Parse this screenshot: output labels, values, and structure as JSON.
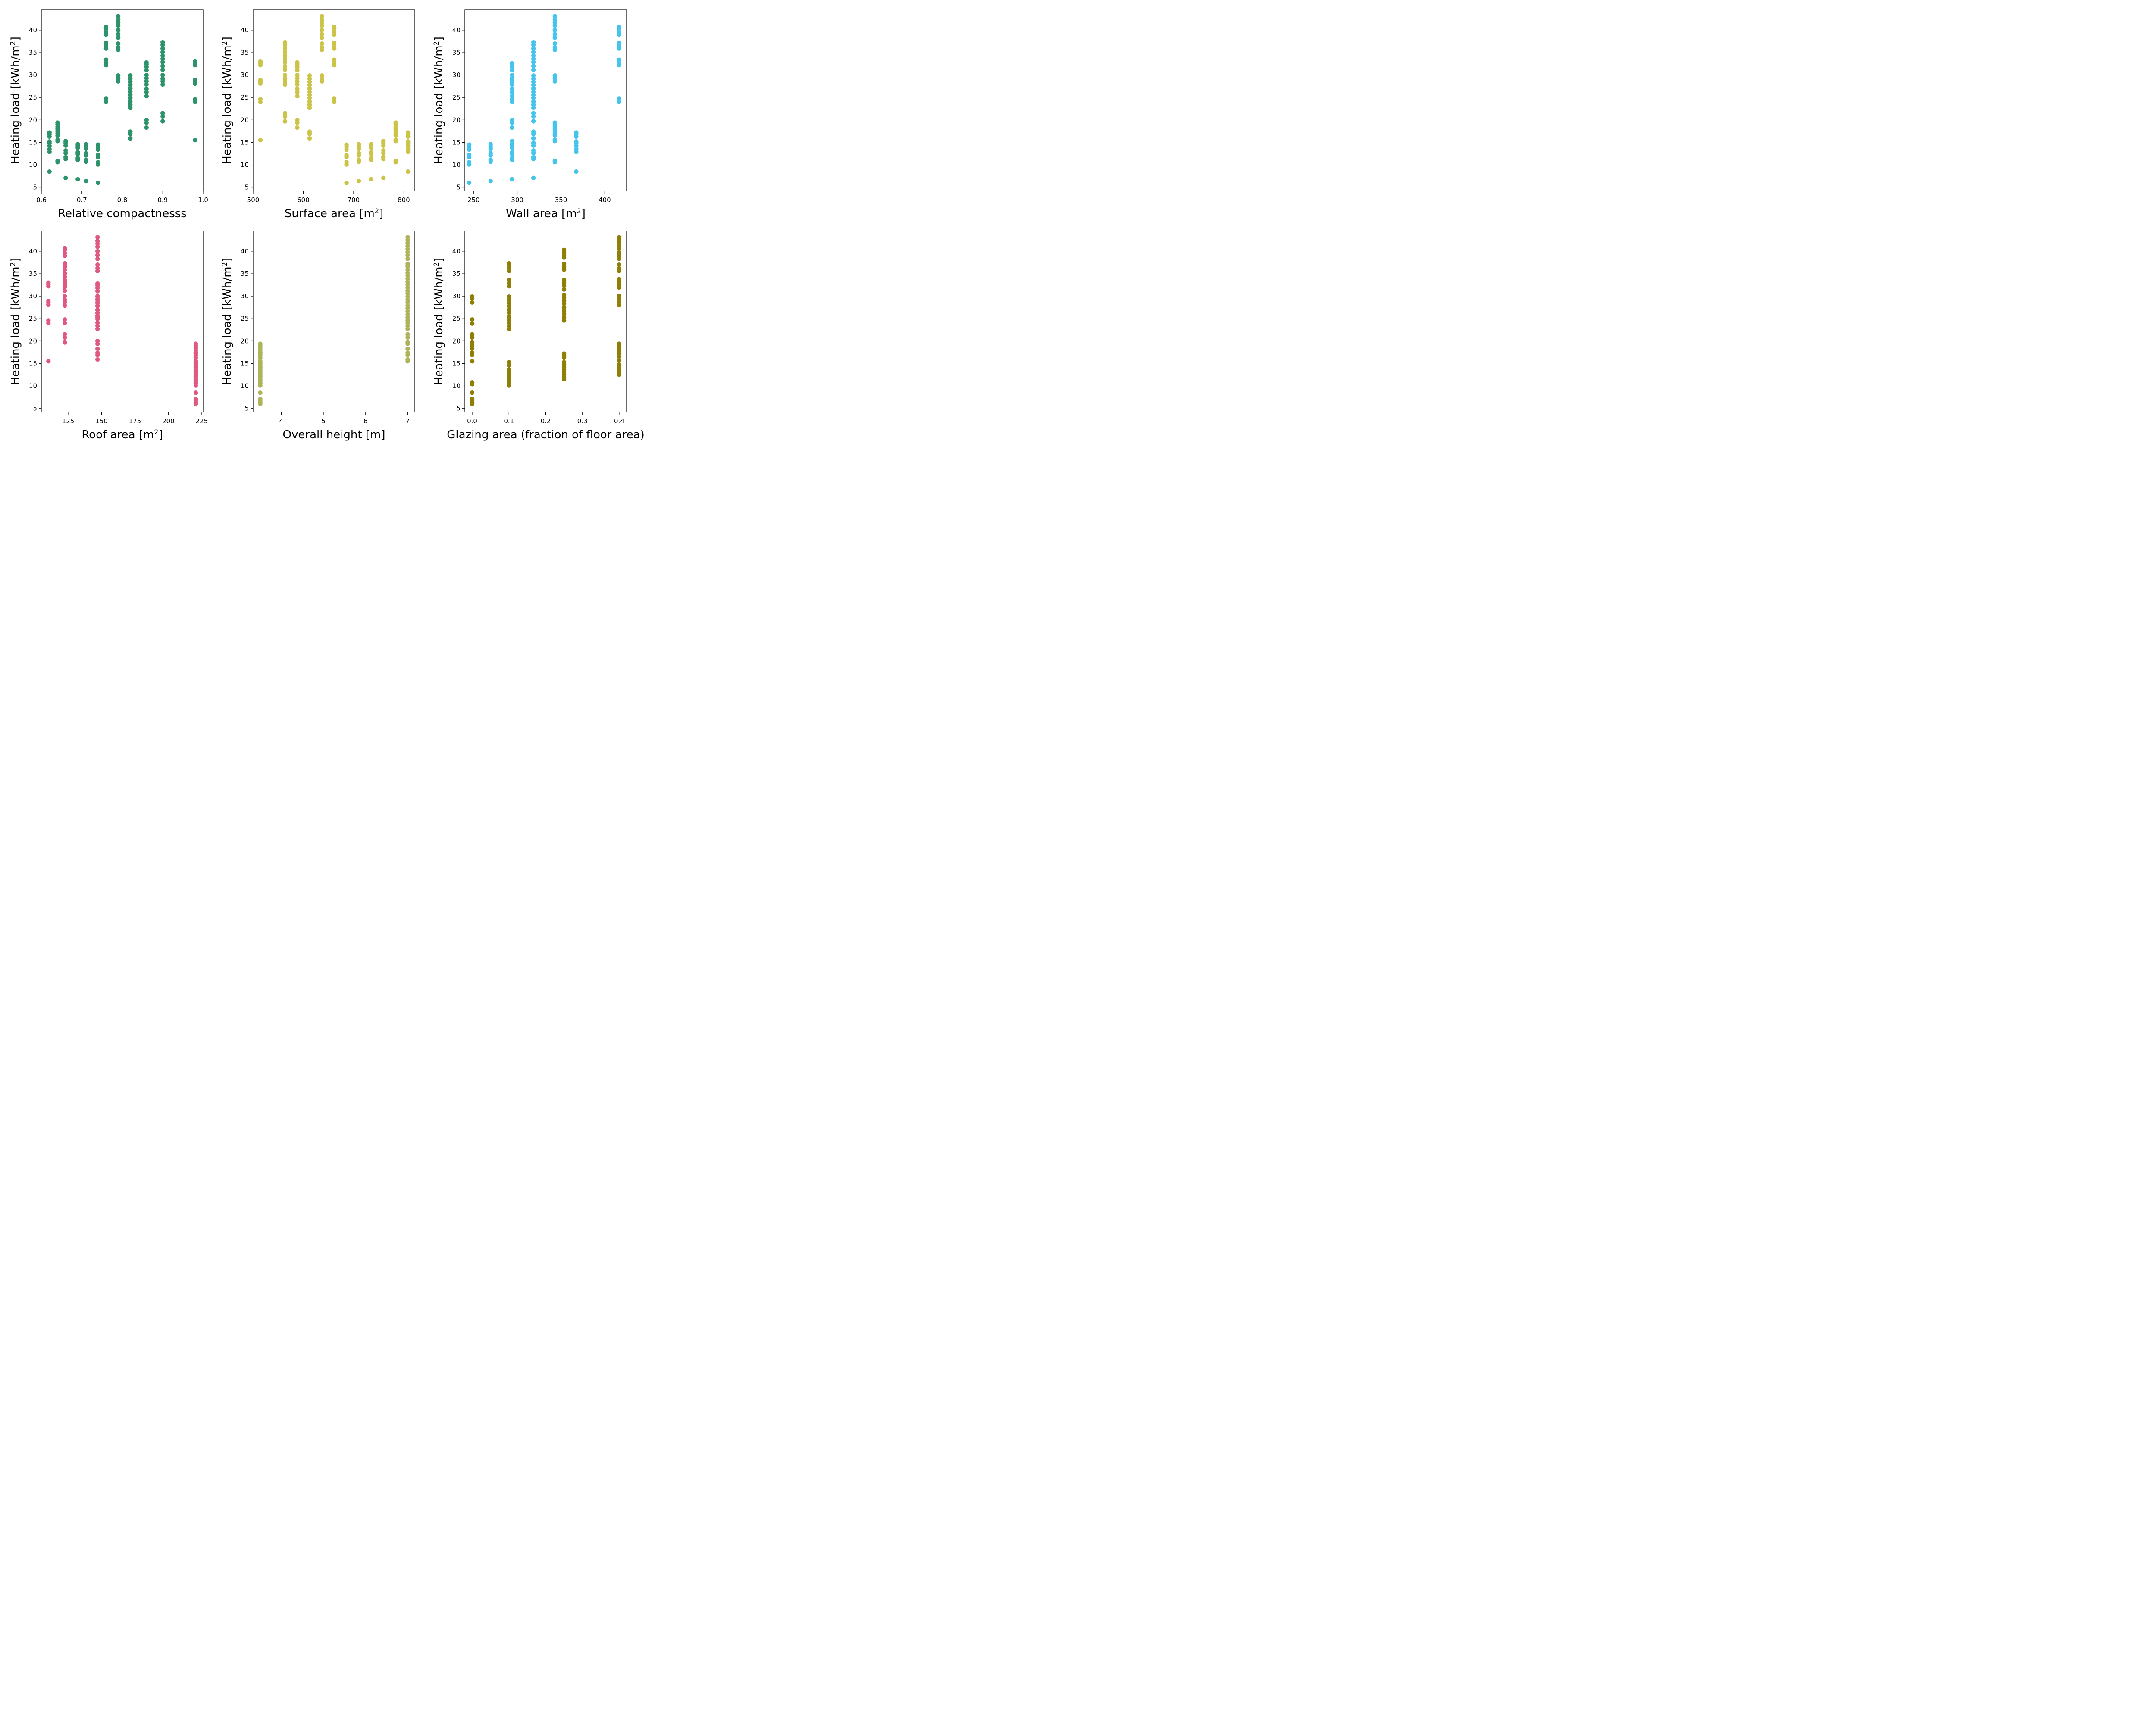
{
  "chart_data": [
    {
      "type": "scatter",
      "xlabel": "Relative compactnesss",
      "ylabel": "Heating load [kWh/m²]",
      "color": "#2e936b",
      "xlim": [
        0.6,
        1.0
      ],
      "ylim": [
        4.2,
        44.5
      ],
      "xticks": [
        0.6,
        0.7,
        0.8,
        0.9,
        1.0
      ],
      "xtick_labels": [
        "0.6",
        "0.7",
        "0.8",
        "0.9",
        "1.0"
      ],
      "yticks": [
        5,
        10,
        15,
        20,
        25,
        30,
        35,
        40
      ],
      "ytick_labels": [
        "5",
        "10",
        "15",
        "20",
        "25",
        "30",
        "35",
        "40"
      ],
      "groups": [
        {
          "x": 0.62,
          "y": [
            8.5,
            12.9,
            13.5,
            14.2,
            14.8,
            15.2,
            16.3,
            16.8,
            17.2
          ]
        },
        {
          "x": 0.64,
          "y": [
            10.6,
            10.9,
            15.3,
            15.6,
            16.5,
            17.0,
            17.5,
            18.0,
            18.5,
            19.0,
            19.4
          ]
        },
        {
          "x": 0.66,
          "y": [
            7.1,
            11.3,
            11.7,
            12.6,
            13.2,
            14.3,
            14.9,
            15.3
          ]
        },
        {
          "x": 0.69,
          "y": [
            6.8,
            11.1,
            11.5,
            12.4,
            12.8,
            13.8,
            14.2,
            14.6
          ]
        },
        {
          "x": 0.71,
          "y": [
            6.4,
            10.7,
            11.1,
            12.1,
            12.6,
            13.6,
            14.1,
            14.6
          ]
        },
        {
          "x": 0.74,
          "y": [
            6.0,
            10.1,
            10.6,
            11.7,
            12.2,
            13.4,
            14.0,
            14.5
          ]
        },
        {
          "x": 0.76,
          "y": [
            24.0,
            24.8,
            32.2,
            32.7,
            33.4,
            35.9,
            36.5,
            37.2,
            39.0,
            39.6,
            40.3,
            40.7
          ]
        },
        {
          "x": 0.79,
          "y": [
            28.6,
            29.2,
            29.9,
            35.6,
            36.2,
            37.0,
            38.3,
            39.1,
            40.0,
            41.0,
            41.7,
            42.3,
            43.1
          ]
        },
        {
          "x": 0.82,
          "y": [
            15.9,
            16.9,
            17.4,
            22.7,
            23.4,
            24.1,
            24.9,
            25.6,
            26.3,
            27.0,
            27.8,
            28.5,
            29.2,
            29.9
          ]
        },
        {
          "x": 0.86,
          "y": [
            18.3,
            19.4,
            20.0,
            25.3,
            26.2,
            26.9,
            27.9,
            28.6,
            29.3,
            30.0,
            31.1,
            31.8,
            32.4,
            32.8
          ]
        },
        {
          "x": 0.9,
          "y": [
            19.7,
            20.8,
            21.5,
            27.9,
            28.6,
            29.2,
            30.0,
            31.2,
            32.0,
            32.9,
            33.6,
            34.3,
            35.1,
            35.9,
            36.7,
            37.3
          ]
        },
        {
          "x": 0.98,
          "y": [
            15.5,
            24.0,
            24.6,
            28.1,
            28.5,
            28.9,
            32.2,
            32.6,
            33.0
          ]
        }
      ]
    },
    {
      "type": "scatter",
      "xlabel": "Surface area [m²]",
      "ylabel": "Heating load [kWh/m²]",
      "color": "#cbc449",
      "xlim": [
        500,
        822
      ],
      "ylim": [
        4.2,
        44.5
      ],
      "xticks": [
        500,
        600,
        700,
        800
      ],
      "xtick_labels": [
        "500",
        "600",
        "700",
        "800"
      ],
      "yticks": [
        5,
        10,
        15,
        20,
        25,
        30,
        35,
        40
      ],
      "ytick_labels": [
        "5",
        "10",
        "15",
        "20",
        "25",
        "30",
        "35",
        "40"
      ],
      "groups": [
        {
          "x": 514.5,
          "y": [
            15.5,
            24.0,
            24.6,
            28.1,
            28.5,
            28.9,
            32.2,
            32.6,
            33.0
          ]
        },
        {
          "x": 563.5,
          "y": [
            19.7,
            20.8,
            21.5,
            27.9,
            28.6,
            29.2,
            30.0,
            31.2,
            32.0,
            32.9,
            33.6,
            34.3,
            35.1,
            35.9,
            36.7,
            37.3
          ]
        },
        {
          "x": 588.0,
          "y": [
            18.3,
            19.4,
            20.0,
            25.3,
            26.2,
            26.9,
            27.9,
            28.6,
            29.3,
            30.0,
            31.1,
            31.8,
            32.4,
            32.8
          ]
        },
        {
          "x": 612.5,
          "y": [
            15.9,
            16.9,
            17.4,
            22.7,
            23.4,
            24.1,
            24.9,
            25.6,
            26.3,
            27.0,
            27.8,
            28.5,
            29.2,
            29.9
          ]
        },
        {
          "x": 637.0,
          "y": [
            28.6,
            29.2,
            29.9,
            35.6,
            36.2,
            37.0,
            38.3,
            39.1,
            40.0,
            41.0,
            41.7,
            42.3,
            43.1
          ]
        },
        {
          "x": 661.5,
          "y": [
            24.0,
            24.8,
            32.2,
            32.7,
            33.4,
            35.9,
            36.5,
            37.2,
            39.0,
            39.6,
            40.3,
            40.7
          ]
        },
        {
          "x": 686.0,
          "y": [
            6.0,
            10.1,
            10.6,
            11.7,
            12.2,
            13.4,
            14.0,
            14.5
          ]
        },
        {
          "x": 710.5,
          "y": [
            6.4,
            10.7,
            11.1,
            12.1,
            12.6,
            13.6,
            14.1,
            14.6
          ]
        },
        {
          "x": 735.0,
          "y": [
            6.8,
            11.1,
            11.5,
            12.4,
            12.8,
            13.8,
            14.2,
            14.6
          ]
        },
        {
          "x": 759.5,
          "y": [
            7.1,
            11.3,
            11.7,
            12.6,
            13.2,
            14.3,
            14.9,
            15.3
          ]
        },
        {
          "x": 784.0,
          "y": [
            10.6,
            10.9,
            15.3,
            15.6,
            16.5,
            17.0,
            17.5,
            18.0,
            18.5,
            19.0,
            19.4
          ]
        },
        {
          "x": 808.5,
          "y": [
            8.5,
            12.9,
            13.5,
            14.2,
            14.8,
            15.2,
            16.3,
            16.8,
            17.2
          ]
        }
      ]
    },
    {
      "type": "scatter",
      "xlabel": "Wall area [m²]",
      "ylabel": "Heating load [kWh/m²]",
      "color": "#45c4ec",
      "xlim": [
        240,
        425
      ],
      "ylim": [
        4.2,
        44.5
      ],
      "xticks": [
        250,
        300,
        350,
        400
      ],
      "xtick_labels": [
        "250",
        "300",
        "350",
        "400"
      ],
      "yticks": [
        5,
        10,
        15,
        20,
        25,
        30,
        35,
        40
      ],
      "ytick_labels": [
        "5",
        "10",
        "15",
        "20",
        "25",
        "30",
        "35",
        "40"
      ],
      "groups": [
        {
          "x": 245.0,
          "y": [
            6.0,
            10.1,
            10.6,
            11.7,
            12.2,
            13.4,
            14.0,
            14.5
          ]
        },
        {
          "x": 269.5,
          "y": [
            6.4,
            10.7,
            11.1,
            12.1,
            12.6,
            13.6,
            14.1,
            14.6
          ]
        },
        {
          "x": 294.0,
          "y": [
            6.8,
            11.1,
            11.5,
            12.4,
            12.8,
            13.8,
            14.2,
            14.6,
            15.3,
            18.3,
            19.4,
            20.0,
            24.0,
            24.6,
            25.3,
            26.2,
            26.9,
            27.9,
            28.1,
            28.6,
            28.9,
            29.3,
            30.0,
            31.1,
            31.8,
            32.2,
            32.6
          ]
        },
        {
          "x": 318.5,
          "y": [
            7.1,
            11.3,
            11.7,
            12.6,
            13.2,
            14.3,
            14.9,
            15.9,
            16.9,
            17.4,
            19.7,
            20.8,
            21.5,
            22.7,
            23.4,
            24.1,
            24.9,
            25.6,
            26.3,
            27.0,
            27.8,
            28.5,
            29.2,
            29.9,
            31.2,
            32.0,
            32.9,
            33.6,
            34.3,
            35.1,
            35.9,
            36.7,
            37.3
          ]
        },
        {
          "x": 343.0,
          "y": [
            10.6,
            10.9,
            15.3,
            15.6,
            16.5,
            17.0,
            17.5,
            18.0,
            18.5,
            19.0,
            19.4,
            28.6,
            29.2,
            29.9,
            35.6,
            36.2,
            37.0,
            38.3,
            39.1,
            40.0,
            41.0,
            41.7,
            42.3,
            43.1
          ]
        },
        {
          "x": 367.5,
          "y": [
            8.5,
            12.9,
            13.5,
            14.2,
            14.8,
            15.2,
            16.3,
            16.8,
            17.2
          ]
        },
        {
          "x": 416.5,
          "y": [
            24.0,
            24.8,
            32.2,
            32.7,
            33.4,
            35.9,
            36.5,
            37.2,
            39.0,
            39.6,
            40.3,
            40.7
          ]
        }
      ]
    },
    {
      "type": "scatter",
      "xlabel": "Roof area [m²]",
      "ylabel": "Heating load [kWh/m²]",
      "color": "#de5a80",
      "xlim": [
        105,
        226
      ],
      "ylim": [
        4.2,
        44.5
      ],
      "xticks": [
        125,
        150,
        175,
        200,
        225
      ],
      "xtick_labels": [
        "125",
        "150",
        "175",
        "200",
        "225"
      ],
      "yticks": [
        5,
        10,
        15,
        20,
        25,
        30,
        35,
        40
      ],
      "ytick_labels": [
        "5",
        "10",
        "15",
        "20",
        "25",
        "30",
        "35",
        "40"
      ],
      "groups": [
        {
          "x": 110.25,
          "y": [
            15.5,
            24.0,
            24.6,
            28.1,
            28.5,
            28.9,
            32.2,
            32.6,
            33.0
          ]
        },
        {
          "x": 122.5,
          "y": [
            19.7,
            20.8,
            21.5,
            24.0,
            24.8,
            27.9,
            28.6,
            29.2,
            30.0,
            31.2,
            32.0,
            32.2,
            32.7,
            32.9,
            33.4,
            33.6,
            34.3,
            35.1,
            35.9,
            36.5,
            36.7,
            37.2,
            37.3,
            39.0,
            39.6,
            40.3,
            40.7
          ]
        },
        {
          "x": 147.0,
          "y": [
            15.9,
            16.9,
            17.4,
            18.3,
            19.4,
            20.0,
            22.7,
            23.4,
            24.1,
            24.9,
            25.3,
            25.6,
            26.2,
            26.3,
            26.9,
            27.0,
            27.8,
            27.9,
            28.5,
            28.6,
            29.2,
            29.3,
            29.9,
            30.0,
            31.1,
            31.8,
            32.4,
            32.8,
            35.6,
            36.2,
            37.0,
            38.3,
            39.1,
            40.0,
            41.0,
            41.7,
            42.3,
            43.1
          ]
        },
        {
          "x": 220.5,
          "y": [
            6.0,
            6.4,
            6.8,
            7.1,
            8.5,
            10.1,
            10.6,
            10.7,
            11.1,
            11.3,
            11.7,
            12.1,
            12.4,
            12.6,
            12.9,
            13.2,
            13.5,
            13.8,
            14.1,
            14.3,
            14.6,
            14.9,
            15.2,
            15.6,
            16.3,
            16.8,
            17.2,
            17.5,
            18.0,
            18.5,
            19.0,
            19.4
          ]
        }
      ]
    },
    {
      "type": "scatter",
      "xlabel": "Overall height [m]",
      "ylabel": "Heating load [kWh/m²]",
      "color": "#afb45c",
      "xlim": [
        3.33,
        7.17
      ],
      "ylim": [
        4.2,
        44.5
      ],
      "xticks": [
        4,
        5,
        6,
        7
      ],
      "xtick_labels": [
        "4",
        "5",
        "6",
        "7"
      ],
      "yticks": [
        5,
        10,
        15,
        20,
        25,
        30,
        35,
        40
      ],
      "ytick_labels": [
        "5",
        "10",
        "15",
        "20",
        "25",
        "30",
        "35",
        "40"
      ],
      "groups": [
        {
          "x": 3.5,
          "y": [
            6.0,
            6.4,
            6.8,
            7.1,
            8.5,
            10.1,
            10.6,
            10.7,
            11.1,
            11.3,
            11.7,
            12.1,
            12.4,
            12.6,
            12.9,
            13.2,
            13.5,
            13.8,
            14.1,
            14.3,
            14.6,
            14.9,
            15.2,
            15.6,
            16.3,
            16.8,
            17.2,
            17.5,
            18.0,
            18.5,
            19.0,
            19.4
          ]
        },
        {
          "x": 7.0,
          "y": [
            15.5,
            15.9,
            16.9,
            17.4,
            18.3,
            19.4,
            19.7,
            20.8,
            21.5,
            22.7,
            23.4,
            24.0,
            24.6,
            25.3,
            25.9,
            26.6,
            27.3,
            27.9,
            28.6,
            29.2,
            29.9,
            30.6,
            31.2,
            31.9,
            32.6,
            33.2,
            33.9,
            34.6,
            35.2,
            35.9,
            36.6,
            37.2,
            38.3,
            39.1,
            39.8,
            40.5,
            41.2,
            41.9,
            42.5,
            43.1
          ]
        }
      ]
    },
    {
      "type": "scatter",
      "xlabel": "Glazing area (fraction of floor area)",
      "ylabel": "Heating load [kWh/m²]",
      "color": "#8f7f07",
      "xlim": [
        -0.02,
        0.42
      ],
      "ylim": [
        4.2,
        44.5
      ],
      "xticks": [
        0.0,
        0.1,
        0.2,
        0.3,
        0.4
      ],
      "xtick_labels": [
        "0.0",
        "0.1",
        "0.2",
        "0.3",
        "0.4"
      ],
      "yticks": [
        5,
        10,
        15,
        20,
        25,
        30,
        35,
        40
      ],
      "ytick_labels": [
        "5",
        "10",
        "15",
        "20",
        "25",
        "30",
        "35",
        "40"
      ],
      "groups": [
        {
          "x": 0.0,
          "y": [
            6.0,
            6.4,
            6.8,
            7.1,
            8.5,
            10.4,
            10.8,
            15.5,
            16.9,
            17.4,
            18.3,
            19.1,
            19.7,
            20.8,
            21.5,
            23.9,
            24.8,
            28.6,
            29.5,
            29.9
          ]
        },
        {
          "x": 0.1,
          "y": [
            10.1,
            10.5,
            11.0,
            11.5,
            12.0,
            12.6,
            13.1,
            13.7,
            14.6,
            15.3,
            22.7,
            23.4,
            24.1,
            24.8,
            25.5,
            26.3,
            27.0,
            27.8,
            28.5,
            29.2,
            29.9,
            32.2,
            32.9,
            33.6,
            35.6,
            36.3,
            37.0,
            37.3
          ]
        },
        {
          "x": 0.25,
          "y": [
            11.5,
            12.0,
            12.6,
            13.1,
            13.7,
            14.2,
            14.8,
            15.3,
            16.3,
            16.8,
            17.2,
            24.6,
            25.3,
            26.0,
            26.7,
            27.5,
            28.3,
            29.0,
            29.7,
            30.3,
            31.5,
            32.3,
            33.0,
            33.6,
            35.9,
            36.5,
            37.2,
            38.6,
            39.2,
            39.8,
            40.3
          ]
        },
        {
          "x": 0.4,
          "y": [
            12.5,
            13.0,
            13.6,
            14.2,
            14.8,
            15.6,
            16.5,
            17.2,
            17.8,
            18.4,
            19.0,
            19.4,
            28.0,
            28.7,
            29.4,
            30.1,
            31.9,
            32.6,
            33.2,
            33.8,
            35.6,
            36.2,
            37.0,
            38.3,
            39.0,
            39.7,
            40.5,
            41.2,
            41.9,
            42.5,
            43.1
          ]
        }
      ]
    }
  ]
}
